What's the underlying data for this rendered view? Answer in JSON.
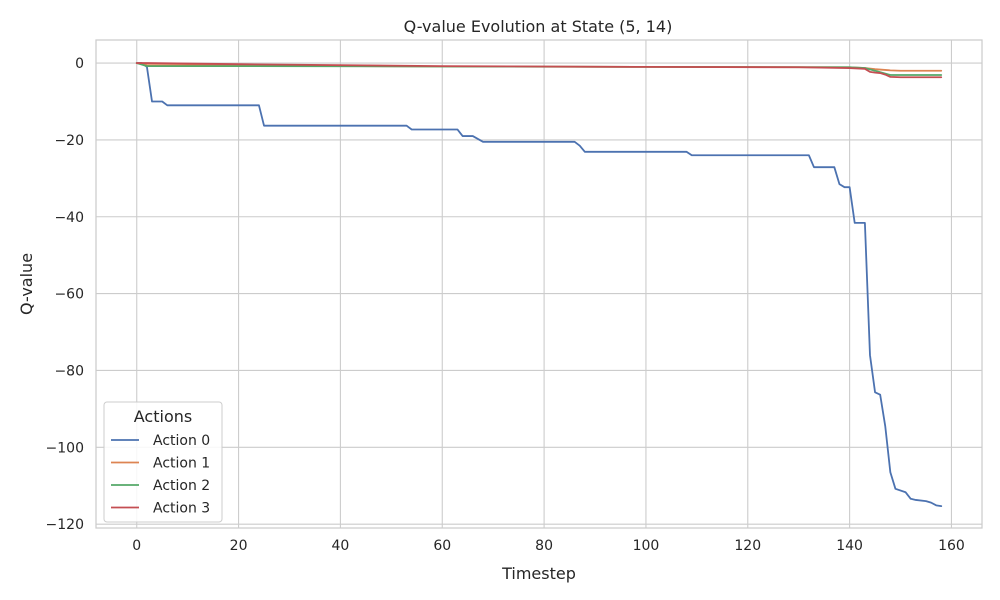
{
  "chart_data": {
    "type": "line",
    "title": "Q-value Evolution at State (5, 14)",
    "xlabel": "Timestep",
    "ylabel": "Q-value",
    "xlim": [
      -8,
      166
    ],
    "ylim": [
      -121,
      6
    ],
    "xticks": [
      0,
      20,
      40,
      60,
      80,
      100,
      120,
      140,
      160
    ],
    "yticks": [
      0,
      -20,
      -40,
      -60,
      -80,
      -100,
      -120
    ],
    "xtick_labels": [
      "0",
      "20",
      "40",
      "60",
      "80",
      "100",
      "120",
      "140",
      "160"
    ],
    "ytick_labels": [
      "0",
      "−20",
      "−40",
      "−60",
      "−80",
      "−100",
      "−120"
    ],
    "grid": true,
    "legend": {
      "title": "Actions",
      "placement": "lower-left"
    },
    "series": [
      {
        "name": "Action 0",
        "color": "#4c72b0",
        "x": [
          0,
          1,
          2,
          3,
          5,
          6,
          24,
          25,
          53,
          54,
          63,
          64,
          66,
          68,
          86,
          87,
          88,
          108,
          109,
          132,
          133,
          137,
          138,
          139,
          140,
          141,
          143,
          144,
          145,
          146,
          147,
          148,
          149,
          151,
          152,
          153,
          155,
          156,
          157,
          158
        ],
        "y": [
          0,
          0,
          -1,
          -10,
          -10,
          -11,
          -11,
          -16.3,
          -16.3,
          -17.3,
          -17.3,
          -19,
          -19,
          -20.5,
          -20.5,
          -21.5,
          -23.1,
          -23.1,
          -24,
          -24,
          -27.1,
          -27.1,
          -31.5,
          -32.3,
          -32.3,
          -41.6,
          -41.6,
          -76,
          -85.7,
          -86.3,
          -94.5,
          -106.5,
          -110.8,
          -111.7,
          -113.4,
          -113.7,
          -114,
          -114.4,
          -115.1,
          -115.3
        ]
      },
      {
        "name": "Action 1",
        "color": "#dd8452",
        "x": [
          0,
          2,
          20,
          60,
          100,
          140,
          143,
          145,
          148,
          150,
          158
        ],
        "y": [
          0,
          -0.5,
          -0.6,
          -0.9,
          -1.0,
          -1.1,
          -1.3,
          -1.6,
          -1.9,
          -2.0,
          -2.0
        ]
      },
      {
        "name": "Action 2",
        "color": "#55a868",
        "x": [
          0,
          2,
          20,
          60,
          100,
          140,
          143,
          145,
          148,
          150,
          158
        ],
        "y": [
          0,
          -0.8,
          -0.8,
          -0.9,
          -1.0,
          -1.1,
          -1.3,
          -2.0,
          -3.1,
          -3.1,
          -3.1
        ]
      },
      {
        "name": "Action 3",
        "color": "#c44e52",
        "x": [
          0,
          2,
          20,
          60,
          100,
          130,
          140,
          143,
          144,
          145,
          146,
          147,
          148,
          150,
          158
        ],
        "y": [
          0,
          0,
          -0.3,
          -0.8,
          -1.0,
          -1.1,
          -1.3,
          -1.5,
          -2.3,
          -2.5,
          -2.6,
          -3.0,
          -3.6,
          -3.7,
          -3.7
        ]
      }
    ]
  }
}
